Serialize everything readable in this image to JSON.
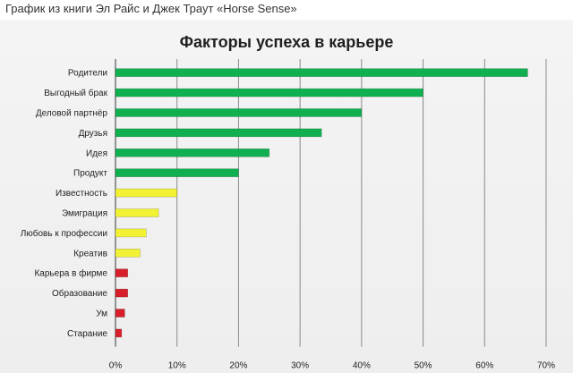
{
  "caption": "График из книги Эл Райс и Джек Траут «Horse Sense»",
  "chart_data": {
    "type": "bar",
    "orientation": "horizontal",
    "title": "Факторы успеха в карьере",
    "xlabel": "",
    "ylabel": "",
    "xlim": [
      0,
      70
    ],
    "ticks": [
      0,
      10,
      20,
      30,
      40,
      50,
      60,
      70
    ],
    "tick_labels": [
      "0%",
      "10%",
      "20%",
      "30%",
      "40%",
      "50%",
      "60%",
      "70%"
    ],
    "grid": "vertical",
    "legend": "none",
    "categories": [
      "Родители",
      "Выгодный брак",
      "Деловой партнёр",
      "Друзья",
      "Идея",
      "Продукт",
      "Известность",
      "Эмиграция",
      "Любовь к профессии",
      "Креатив",
      "Карьера в фирме",
      "Образование",
      "Ум",
      "Старание"
    ],
    "values": [
      67,
      50,
      40,
      33.5,
      25,
      20,
      10,
      7,
      5,
      4,
      2,
      2,
      1.5,
      1
    ],
    "colors": [
      "#10b050",
      "#10b050",
      "#10b050",
      "#10b050",
      "#10b050",
      "#10b050",
      "#f2f235",
      "#f2f235",
      "#f2f235",
      "#f2f235",
      "#d81e2a",
      "#d81e2a",
      "#d81e2a",
      "#d81e2a"
    ]
  }
}
